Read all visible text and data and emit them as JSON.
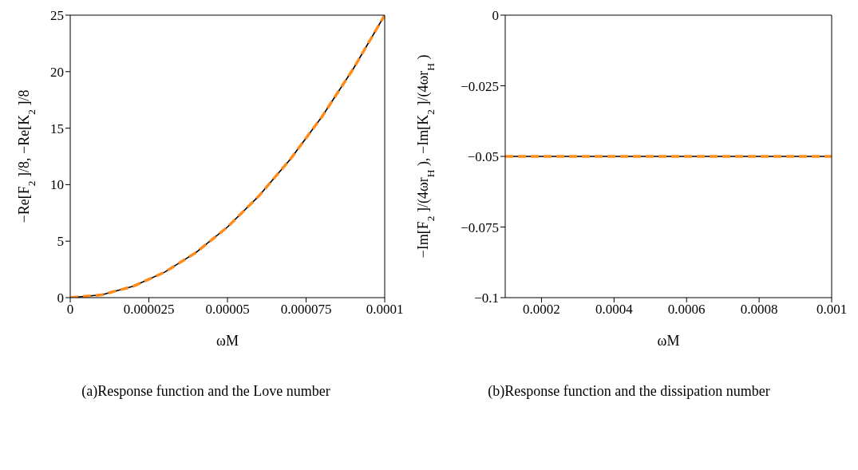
{
  "chart_data": [
    {
      "type": "line",
      "xlabel": "ωM",
      "ylabel": "−Re[F$_{2}$]/8, −Re[K$_{2}$]/8",
      "annotations": [
        "(a)Response function and the Love number"
      ],
      "marker": "none",
      "x": [
        0,
        1e-05,
        2e-05,
        3e-05,
        4e-05,
        5e-05,
        6e-05,
        7e-05,
        8e-05,
        9e-05,
        0.0001
      ],
      "series": [
        {
          "color": "#000000",
          "line_style": "solid",
          "values": [
            0,
            0.25,
            1,
            2.25,
            4,
            6.25,
            9,
            12.25,
            16,
            20.25,
            25
          ]
        },
        {
          "color": "#ff8c1a",
          "line_style": "dashed",
          "values": [
            0,
            0.25,
            1,
            2.25,
            4,
            6.25,
            9,
            12.25,
            16,
            20.25,
            25
          ]
        }
      ],
      "xlim": [
        0,
        0.0001
      ],
      "ylim": [
        0,
        25
      ],
      "xticks": [
        0,
        {
          "value": 2.5e-05,
          "label": "0.000025"
        },
        {
          "value": 5e-05,
          "label": "0.00005"
        },
        {
          "value": 7.5e-05,
          "label": "0.000075"
        },
        0.0001
      ],
      "yticks": [
        0,
        5,
        10,
        15,
        20,
        25
      ]
    },
    {
      "type": "line",
      "xlabel": "ωM",
      "ylabel": "−Im[F$_{2}$]/(4ωr$_{H}$), −Im[K$_{2}$]/(4ωr$_{H}$)",
      "annotations": [
        "(b)Response function and the dissipation number"
      ],
      "marker": "none",
      "x": [
        0.0001,
        0.0004,
        0.0007,
        0.001
      ],
      "series": [
        {
          "color": "#000000",
          "line_style": "solid",
          "values": [
            -0.05,
            -0.05,
            -0.05,
            -0.05
          ]
        },
        {
          "color": "#ff8c1a",
          "line_style": "dashed",
          "values": [
            -0.05,
            -0.05,
            -0.05,
            -0.05
          ]
        }
      ],
      "xlim": [
        0.0001,
        0.001
      ],
      "ylim": [
        -0.1,
        0
      ],
      "xticks": [
        0.0002,
        0.0004,
        0.0006,
        0.0008,
        0.001
      ],
      "yticks": [
        {
          "value": -0.1,
          "label": "−0.1"
        },
        {
          "value": -0.075,
          "label": "−0.075"
        },
        {
          "value": -0.05,
          "label": "−0.05"
        },
        {
          "value": -0.025,
          "label": "−0.025"
        },
        0
      ]
    }
  ]
}
